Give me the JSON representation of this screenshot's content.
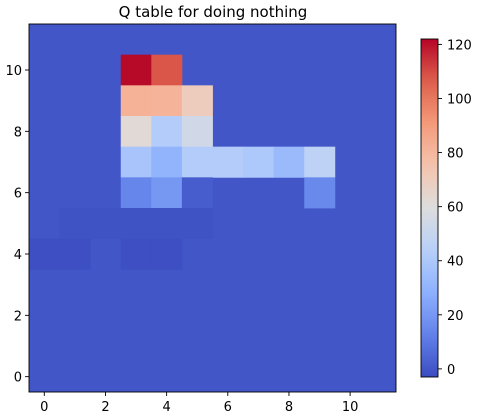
{
  "chart_data": {
    "type": "heatmap",
    "title": "Q table for doing nothing",
    "xlabel": "",
    "ylabel": "",
    "xlim": [
      -0.5,
      11.5
    ],
    "ylim": [
      -0.5,
      11.5
    ],
    "x_ticks": [
      0,
      2,
      4,
      6,
      8,
      10
    ],
    "y_ticks": [
      0,
      2,
      4,
      6,
      8,
      10
    ],
    "colormap": "coolwarm",
    "color_range": [
      -3,
      122
    ],
    "colorbar_ticks": [
      0,
      20,
      40,
      60,
      80,
      100,
      120
    ],
    "grid": false,
    "background_value": 0,
    "cells": [
      {
        "x": 3,
        "y": 10,
        "value": 121
      },
      {
        "x": 4,
        "y": 10,
        "value": 108
      },
      {
        "x": 3,
        "y": 9,
        "value": 82
      },
      {
        "x": 4,
        "y": 9,
        "value": 81
      },
      {
        "x": 5,
        "y": 9,
        "value": 70
      },
      {
        "x": 3,
        "y": 8,
        "value": 62
      },
      {
        "x": 4,
        "y": 8,
        "value": 42
      },
      {
        "x": 5,
        "y": 8,
        "value": 54
      },
      {
        "x": 3,
        "y": 7,
        "value": 38
      },
      {
        "x": 4,
        "y": 7,
        "value": 30
      },
      {
        "x": 5,
        "y": 7,
        "value": 42
      },
      {
        "x": 6,
        "y": 7,
        "value": 42
      },
      {
        "x": 7,
        "y": 7,
        "value": 40
      },
      {
        "x": 8,
        "y": 7,
        "value": 33
      },
      {
        "x": 9,
        "y": 7,
        "value": 46
      },
      {
        "x": 3,
        "y": 6,
        "value": 14
      },
      {
        "x": 4,
        "y": 6,
        "value": 20
      },
      {
        "x": 5,
        "y": 6,
        "value": 2
      },
      {
        "x": 9,
        "y": 6,
        "value": 15
      },
      {
        "x": 1,
        "y": 5,
        "value": -1
      },
      {
        "x": 2,
        "y": 5,
        "value": -1
      },
      {
        "x": 3,
        "y": 5,
        "value": -1
      },
      {
        "x": 4,
        "y": 5,
        "value": -1
      },
      {
        "x": 5,
        "y": 5,
        "value": -1
      },
      {
        "x": 0,
        "y": 4,
        "value": -2
      },
      {
        "x": 1,
        "y": 4,
        "value": -2
      },
      {
        "x": 3,
        "y": 4,
        "value": -2
      },
      {
        "x": 4,
        "y": 4,
        "value": -2
      }
    ]
  }
}
